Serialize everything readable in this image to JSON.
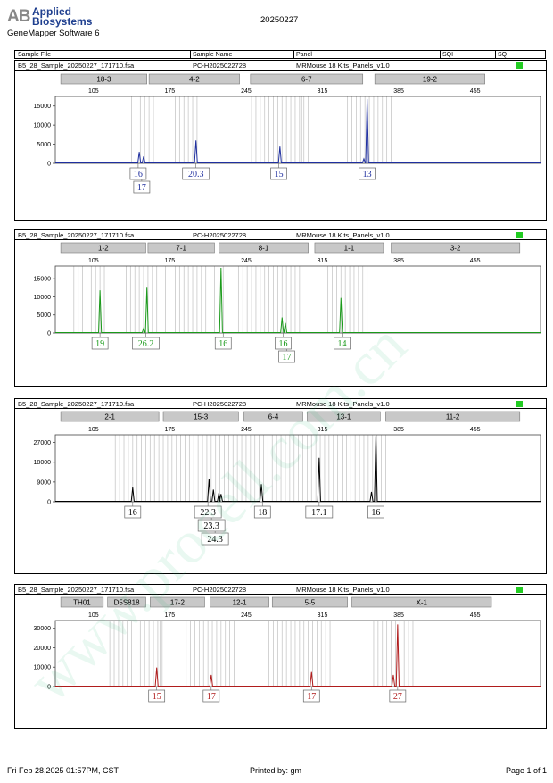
{
  "header": {
    "brand": "Applied Biosystems",
    "logo_mark": "AB",
    "software": "GeneMapper Software 6",
    "run_date": "20250227"
  },
  "columns": [
    "Sample File",
    "Sample Name",
    "Panel",
    "SQI",
    "SQ"
  ],
  "footer": {
    "timestamp": "Fri Feb 28,2025 01:57PM, CST",
    "printed_by": "Printed by: gm",
    "page": "Page 1 of 1"
  },
  "watermark_text": "www.procell.com.cn",
  "colors": {
    "blue": "#1f2f9f",
    "green": "#1a9a1a",
    "black": "#000000",
    "red": "#b01c1c",
    "sq_ok": "#22cc22",
    "bin_box": "#c8c8c8"
  },
  "chart_data": [
    {
      "type": "line",
      "sample_file": "B5_28_Sample_20250227_171710.fsa",
      "sample_name": "PC-H2025022728",
      "panel": "MRMouse 18 Kits_Panels_v1.0",
      "color": "#1f2f9f",
      "xlim": [
        70,
        515
      ],
      "x_ticks": [
        105,
        175,
        245,
        315,
        385,
        455
      ],
      "ylim": [
        0,
        17500
      ],
      "y_ticks": [
        0,
        5000,
        10000,
        15000
      ],
      "markers": [
        {
          "label": "18-3",
          "start": 75,
          "end": 154
        },
        {
          "label": "4-2",
          "start": 156,
          "end": 239
        },
        {
          "label": "6-7",
          "start": 249,
          "end": 352
        },
        {
          "label": "19-2",
          "start": 363,
          "end": 464
        }
      ],
      "bins": [
        140,
        144,
        148,
        152,
        156,
        160,
        180,
        184,
        188,
        192,
        196,
        200,
        250,
        254,
        258,
        262,
        266,
        270,
        274,
        278,
        282,
        286,
        290,
        294,
        296,
        298,
        302,
        338,
        342,
        346,
        350,
        354,
        358,
        362,
        366,
        370,
        374,
        378
      ],
      "peaks": [
        {
          "x": 147,
          "y": 3000
        },
        {
          "x": 151,
          "y": 1800
        },
        {
          "x": 199,
          "y": 6000
        },
        {
          "x": 276,
          "y": 4400
        },
        {
          "x": 353,
          "y": 1200
        },
        {
          "x": 356,
          "y": 16800
        }
      ],
      "alleles": [
        {
          "x": 146,
          "labels": [
            "16",
            "17"
          ]
        },
        {
          "x": 199,
          "labels": [
            "20.3"
          ]
        },
        {
          "x": 275,
          "labels": [
            "15"
          ]
        },
        {
          "x": 356,
          "labels": [
            "13"
          ]
        }
      ]
    },
    {
      "type": "line",
      "sample_file": "B5_28_Sample_20250227_171710.fsa",
      "sample_name": "PC-H2025022728",
      "panel": "MRMouse 18 Kits_Panels_v1.0",
      "color": "#1a9a1a",
      "xlim": [
        70,
        515
      ],
      "x_ticks": [
        105,
        175,
        245,
        315,
        385,
        455
      ],
      "ylim": [
        0,
        18500
      ],
      "y_ticks": [
        0,
        5000,
        10000,
        15000
      ],
      "markers": [
        {
          "label": "1-2",
          "start": 75,
          "end": 153
        },
        {
          "label": "7-1",
          "start": 155,
          "end": 216
        },
        {
          "label": "8-1",
          "start": 220,
          "end": 302
        },
        {
          "label": "1-1",
          "start": 308,
          "end": 371
        },
        {
          "label": "3-2",
          "start": 378,
          "end": 496
        }
      ],
      "bins": [
        87,
        91,
        95,
        99,
        103,
        107,
        111,
        115,
        135,
        139,
        143,
        147,
        151,
        155,
        159,
        163,
        167,
        171,
        180,
        184,
        188,
        192,
        196,
        200,
        204,
        208,
        212,
        216,
        220,
        224,
        238,
        242,
        246,
        250,
        254,
        258,
        262,
        266,
        270,
        274,
        278,
        282,
        286,
        290,
        294,
        320,
        324,
        328,
        332,
        336,
        340,
        344,
        348,
        352,
        356
      ],
      "peaks": [
        {
          "x": 111,
          "y": 11800
        },
        {
          "x": 151,
          "y": 1300
        },
        {
          "x": 154,
          "y": 12500
        },
        {
          "x": 222,
          "y": 18000
        },
        {
          "x": 278,
          "y": 4300
        },
        {
          "x": 281,
          "y": 2800
        },
        {
          "x": 332,
          "y": 9700
        }
      ],
      "alleles": [
        {
          "x": 111,
          "labels": [
            "19"
          ]
        },
        {
          "x": 153,
          "labels": [
            "26.2"
          ]
        },
        {
          "x": 224,
          "labels": [
            "16"
          ]
        },
        {
          "x": 279,
          "labels": [
            "16",
            "17"
          ]
        },
        {
          "x": 333,
          "labels": [
            "14"
          ]
        }
      ]
    },
    {
      "type": "line",
      "sample_file": "B5_28_Sample_20250227_171710.fsa",
      "sample_name": "PC-H2025022728",
      "panel": "MRMouse 18 Kits_Panels_v1.0",
      "color": "#000000",
      "xlim": [
        70,
        515
      ],
      "x_ticks": [
        105,
        175,
        245,
        315,
        385,
        455
      ],
      "ylim": [
        0,
        30500
      ],
      "y_ticks": [
        0,
        9000,
        18000,
        27000
      ],
      "markers": [
        {
          "label": "2-1",
          "start": 75,
          "end": 165
        },
        {
          "label": "15-3",
          "start": 169,
          "end": 238
        },
        {
          "label": "6-4",
          "start": 243,
          "end": 297
        },
        {
          "label": "13-1",
          "start": 301,
          "end": 368
        },
        {
          "label": "11-2",
          "start": 373,
          "end": 496
        }
      ],
      "bins": [
        125,
        129,
        133,
        137,
        141,
        145,
        149,
        153,
        157,
        161,
        165,
        169,
        173,
        177,
        181,
        185,
        189,
        193,
        197,
        201,
        205,
        209,
        213,
        217,
        221,
        225,
        229,
        233,
        237,
        241,
        245,
        249,
        253,
        257,
        261,
        265,
        269,
        273,
        277,
        281,
        285,
        289,
        293,
        297,
        301,
        305,
        309,
        313,
        317,
        321,
        325,
        329,
        333,
        337,
        341,
        345,
        349,
        353,
        357,
        361,
        365,
        369,
        373
      ],
      "peaks": [
        {
          "x": 141,
          "y": 6500
        },
        {
          "x": 211,
          "y": 10500
        },
        {
          "x": 215,
          "y": 5500
        },
        {
          "x": 220,
          "y": 4000
        },
        {
          "x": 222,
          "y": 3500
        },
        {
          "x": 259,
          "y": 8000
        },
        {
          "x": 312,
          "y": 20000
        },
        {
          "x": 360,
          "y": 4500
        },
        {
          "x": 364,
          "y": 30000
        }
      ],
      "alleles": [
        {
          "x": 141,
          "labels": [
            "16"
          ]
        },
        {
          "x": 210,
          "labels": [
            "22.3",
            "23.3",
            "24.3"
          ]
        },
        {
          "x": 260,
          "labels": [
            "18"
          ]
        },
        {
          "x": 312,
          "labels": [
            "17.1"
          ]
        },
        {
          "x": 364,
          "labels": [
            "16"
          ]
        }
      ]
    },
    {
      "type": "line",
      "sample_file": "B5_28_Sample_20250227_171710.fsa",
      "sample_name": "PC-H2025022728",
      "panel": "MRMouse 18 Kits_Panels_v1.0",
      "color": "#b01c1c",
      "xlim": [
        70,
        515
      ],
      "x_ticks": [
        105,
        175,
        245,
        315,
        385,
        455
      ],
      "ylim": [
        0,
        34000
      ],
      "y_ticks": [
        0,
        10000,
        20000,
        30000
      ],
      "markers": [
        {
          "label": "TH01",
          "start": 75,
          "end": 114
        },
        {
          "label": "D5S818",
          "start": 118,
          "end": 153
        },
        {
          "label": "17-2",
          "start": 157,
          "end": 207
        },
        {
          "label": "12-1",
          "start": 212,
          "end": 266
        },
        {
          "label": "5-5",
          "start": 269,
          "end": 338
        },
        {
          "label": "X-1",
          "start": 342,
          "end": 470
        }
      ],
      "bins": [
        120,
        124,
        128,
        132,
        136,
        140,
        144,
        148,
        152,
        156,
        160,
        164,
        166,
        168,
        190,
        194,
        198,
        202,
        206,
        210,
        214,
        218,
        222,
        226,
        230,
        234,
        266,
        270,
        274,
        278,
        282,
        286,
        290,
        294,
        298,
        302,
        306,
        310,
        314,
        318,
        322,
        362,
        366,
        370,
        374,
        378,
        382,
        386,
        390,
        394,
        398
      ],
      "peaks": [
        {
          "x": 163,
          "y": 9800
        },
        {
          "x": 213,
          "y": 6000
        },
        {
          "x": 305,
          "y": 7500
        },
        {
          "x": 380,
          "y": 6000
        },
        {
          "x": 384,
          "y": 32000
        }
      ],
      "alleles": [
        {
          "x": 163,
          "labels": [
            "15"
          ]
        },
        {
          "x": 213,
          "labels": [
            "17"
          ]
        },
        {
          "x": 305,
          "labels": [
            "17"
          ]
        },
        {
          "x": 384,
          "labels": [
            "27"
          ]
        }
      ]
    }
  ]
}
